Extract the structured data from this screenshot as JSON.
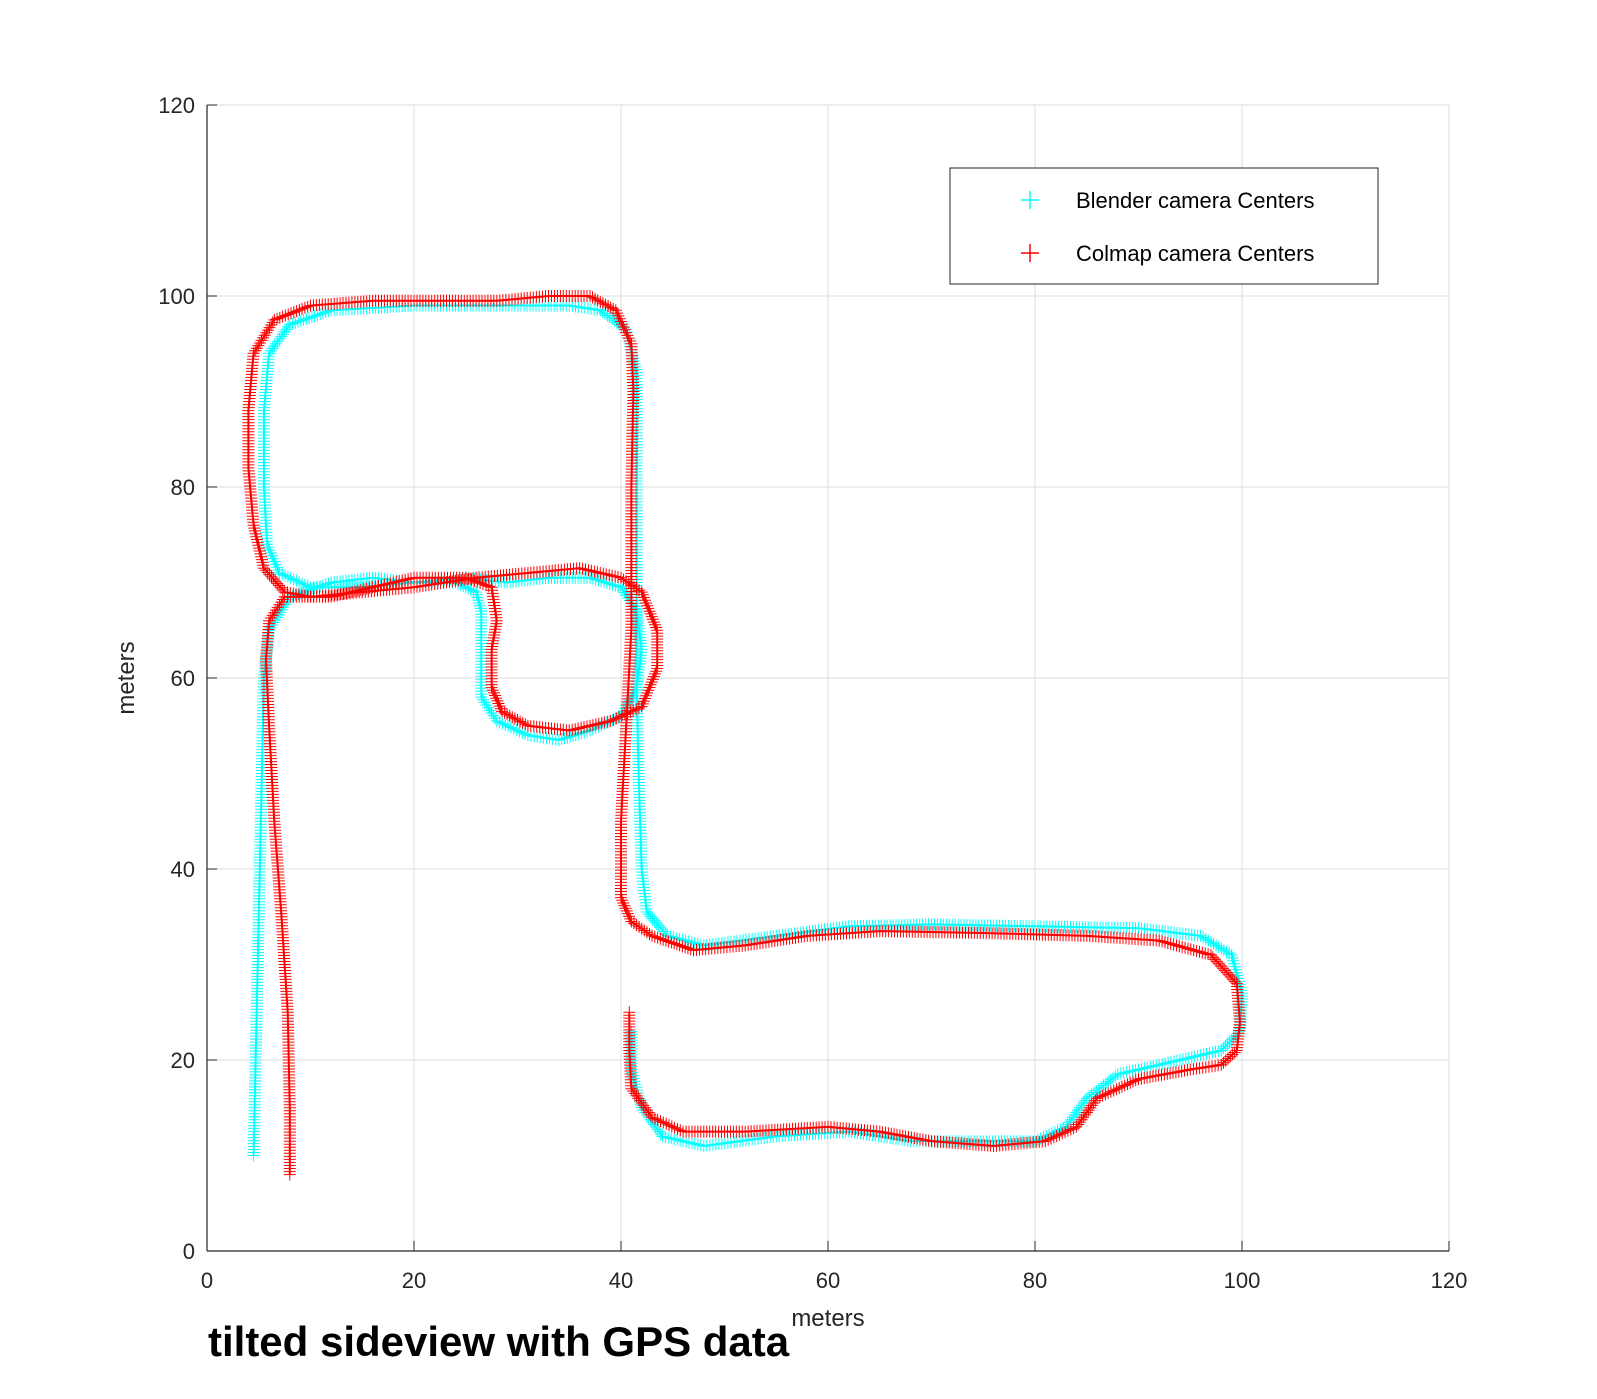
{
  "caption": "tilted sideview with GPS data",
  "chart_data": {
    "type": "scatter",
    "title": "",
    "xlabel": "meters",
    "ylabel": "meters",
    "xlim": [
      0,
      120
    ],
    "ylim": [
      0,
      120
    ],
    "xticks": [
      0,
      20,
      40,
      60,
      80,
      100,
      120
    ],
    "yticks": [
      0,
      20,
      40,
      60,
      80,
      100,
      120
    ],
    "grid": true,
    "legend_position": "top-right",
    "marker": "+",
    "series": [
      {
        "name": "Blender camera Centers",
        "color": "#00ffff",
        "path": [
          [
            4.5,
            10
          ],
          [
            4.7,
            20
          ],
          [
            4.9,
            30
          ],
          [
            5.1,
            40
          ],
          [
            5.3,
            50
          ],
          [
            5.5,
            60
          ],
          [
            6,
            65
          ],
          [
            8,
            68.5
          ],
          [
            12,
            70
          ],
          [
            16,
            70.5
          ],
          [
            20,
            70
          ],
          [
            24,
            70
          ],
          [
            26,
            69
          ],
          [
            26.5,
            67
          ],
          [
            26.5,
            63
          ],
          [
            26.5,
            58
          ],
          [
            28,
            55.5
          ],
          [
            31,
            54
          ],
          [
            34,
            53.5
          ],
          [
            37,
            54.5
          ],
          [
            40,
            56
          ],
          [
            41.5,
            59
          ],
          [
            42,
            63
          ],
          [
            41.5,
            67
          ],
          [
            40,
            69.5
          ],
          [
            37,
            70.5
          ],
          [
            33,
            70.5
          ],
          [
            29,
            70
          ],
          [
            25,
            70.5
          ],
          [
            20,
            70
          ],
          [
            15,
            69.5
          ],
          [
            10,
            69.5
          ],
          [
            7,
            71
          ],
          [
            5.8,
            74
          ],
          [
            5.5,
            80
          ],
          [
            5.5,
            88
          ],
          [
            6,
            94
          ],
          [
            8,
            97
          ],
          [
            12,
            98.5
          ],
          [
            20,
            99
          ],
          [
            28,
            99
          ],
          [
            35,
            99
          ],
          [
            38,
            98.5
          ],
          [
            40.5,
            96.5
          ],
          [
            41.5,
            92
          ],
          [
            41.5,
            80
          ],
          [
            41.5,
            60
          ],
          [
            41.7,
            50
          ],
          [
            42,
            40
          ],
          [
            42.5,
            35.5
          ],
          [
            44.5,
            33
          ],
          [
            48,
            32
          ],
          [
            55,
            33
          ],
          [
            62,
            34
          ],
          [
            70,
            34.2
          ],
          [
            80,
            34
          ],
          [
            90,
            33.8
          ],
          [
            96,
            33
          ],
          [
            99,
            31
          ],
          [
            100,
            27
          ],
          [
            99.8,
            23
          ],
          [
            98,
            21
          ],
          [
            94,
            20
          ],
          [
            88,
            18.5
          ],
          [
            85,
            16
          ],
          [
            83,
            13
          ],
          [
            80,
            11.5
          ],
          [
            75,
            11.5
          ],
          [
            68,
            11.5
          ],
          [
            62,
            12.5
          ],
          [
            55,
            12
          ],
          [
            48,
            11
          ],
          [
            44,
            12
          ],
          [
            42,
            15
          ],
          [
            41,
            19
          ],
          [
            41,
            23
          ]
        ]
      },
      {
        "name": "Colmap camera Centers",
        "color": "#ff0000",
        "path": [
          [
            8,
            8
          ],
          [
            8,
            15
          ],
          [
            7.8,
            25
          ],
          [
            7.2,
            35
          ],
          [
            6.5,
            45
          ],
          [
            6,
            55
          ],
          [
            5.7,
            62
          ],
          [
            6,
            66
          ],
          [
            7.5,
            68.5
          ],
          [
            12,
            68.5
          ],
          [
            16,
            69.5
          ],
          [
            20,
            70.5
          ],
          [
            25,
            70.5
          ],
          [
            27.5,
            69.5
          ],
          [
            28,
            66
          ],
          [
            27.5,
            63
          ],
          [
            27.5,
            59
          ],
          [
            28.5,
            56.5
          ],
          [
            31,
            55
          ],
          [
            35,
            54.5
          ],
          [
            39,
            55.5
          ],
          [
            42,
            57
          ],
          [
            43.5,
            61
          ],
          [
            43.5,
            65
          ],
          [
            42,
            69
          ],
          [
            40,
            70.5
          ],
          [
            36,
            71.5
          ],
          [
            31,
            71
          ],
          [
            26,
            70.5
          ],
          [
            20,
            69.5
          ],
          [
            15,
            69
          ],
          [
            10,
            68.5
          ],
          [
            7.5,
            69
          ],
          [
            5.5,
            71.5
          ],
          [
            4.5,
            76
          ],
          [
            4,
            82
          ],
          [
            4,
            88
          ],
          [
            4.5,
            94
          ],
          [
            6.5,
            97.5
          ],
          [
            10,
            99
          ],
          [
            16,
            99.5
          ],
          [
            22,
            99.5
          ],
          [
            28,
            99.5
          ],
          [
            33,
            100
          ],
          [
            37,
            100
          ],
          [
            39.5,
            98.5
          ],
          [
            41,
            95
          ],
          [
            41.2,
            90
          ],
          [
            41,
            80
          ],
          [
            41,
            65
          ],
          [
            40.5,
            55
          ],
          [
            40,
            45
          ],
          [
            40,
            37
          ],
          [
            41,
            34.5
          ],
          [
            43,
            33
          ],
          [
            47,
            31.5
          ],
          [
            52,
            32
          ],
          [
            58,
            33
          ],
          [
            65,
            33.5
          ],
          [
            75,
            33.3
          ],
          [
            85,
            33
          ],
          [
            92,
            32.5
          ],
          [
            97,
            31
          ],
          [
            99.5,
            28
          ],
          [
            99.8,
            24
          ],
          [
            99.5,
            21
          ],
          [
            98,
            19.5
          ],
          [
            95,
            19
          ],
          [
            90,
            18
          ],
          [
            86,
            16
          ],
          [
            84,
            13
          ],
          [
            81,
            11.5
          ],
          [
            76,
            11
          ],
          [
            70,
            11.5
          ],
          [
            65,
            12.5
          ],
          [
            60,
            13
          ],
          [
            52,
            12.5
          ],
          [
            46,
            12.5
          ],
          [
            43,
            14
          ],
          [
            41,
            17
          ],
          [
            40.8,
            21
          ],
          [
            40.8,
            25
          ]
        ]
      }
    ]
  }
}
